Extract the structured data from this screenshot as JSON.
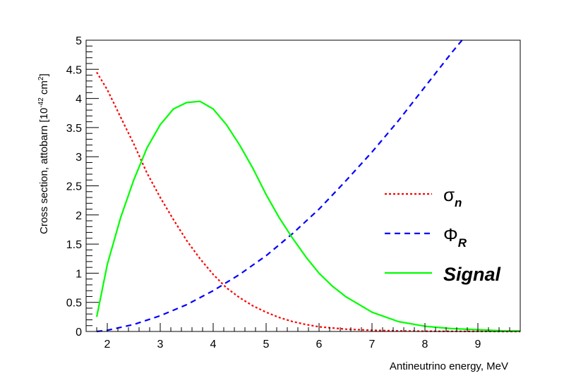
{
  "chart_data": {
    "type": "line",
    "xlabel": "Antineutrino energy, MeV",
    "ylabel": "Cross section, attobarn [10",
    "ylabel_exp": "-42",
    "ylabel_unit": " cm",
    "ylabel_unit_exp": "2",
    "ylabel_close": "]",
    "xlim": [
      1.6,
      9.8
    ],
    "ylim": [
      0,
      5
    ],
    "x_ticks": [
      "2",
      "3",
      "4",
      "5",
      "6",
      "7",
      "8",
      "9"
    ],
    "y_ticks": [
      "0",
      "0.5",
      "1",
      "1.5",
      "2",
      "2.5",
      "3",
      "3.5",
      "4",
      "4.5",
      "5"
    ],
    "grid": false,
    "legend_position": "right",
    "series": [
      {
        "name": "σ",
        "subscript": "n",
        "color": "#ff0000",
        "style": "dotted",
        "x": [
          1.8,
          2.0,
          2.25,
          2.5,
          2.75,
          3.0,
          3.25,
          3.5,
          3.75,
          4.0,
          4.25,
          4.5,
          4.75,
          5.0,
          5.25,
          5.5,
          5.75,
          6.0,
          6.5,
          7.0,
          7.5,
          8.0,
          8.5,
          9.0,
          9.5,
          9.8
        ],
        "y": [
          4.45,
          4.15,
          3.68,
          3.22,
          2.72,
          2.3,
          1.92,
          1.56,
          1.25,
          0.98,
          0.75,
          0.58,
          0.44,
          0.33,
          0.24,
          0.17,
          0.12,
          0.08,
          0.04,
          0.02,
          0.01,
          0.005,
          0.002,
          0.001,
          0.0,
          0.0
        ]
      },
      {
        "name": "Φ",
        "subscript": "R",
        "color": "#0000ff",
        "style": "dashed",
        "x": [
          1.8,
          2.0,
          2.5,
          3.0,
          3.5,
          4.0,
          4.5,
          5.0,
          5.5,
          6.0,
          6.5,
          7.0,
          7.5,
          8.0,
          8.5,
          8.7
        ],
        "y": [
          0.0,
          0.02,
          0.12,
          0.27,
          0.46,
          0.7,
          0.98,
          1.3,
          1.68,
          2.1,
          2.58,
          3.08,
          3.62,
          4.2,
          4.78,
          5.0
        ]
      },
      {
        "name": "Signal",
        "color": "#00ff00",
        "style": "solid",
        "x": [
          1.8,
          2.0,
          2.25,
          2.5,
          2.75,
          3.0,
          3.25,
          3.5,
          3.75,
          4.0,
          4.25,
          4.5,
          4.75,
          5.0,
          5.25,
          5.5,
          5.75,
          6.0,
          6.25,
          6.5,
          7.0,
          7.5,
          8.0,
          8.5,
          9.0,
          9.5,
          9.8
        ],
        "y": [
          0.25,
          1.15,
          1.95,
          2.6,
          3.15,
          3.55,
          3.82,
          3.93,
          3.95,
          3.82,
          3.55,
          3.2,
          2.8,
          2.35,
          1.95,
          1.6,
          1.28,
          1.0,
          0.78,
          0.6,
          0.33,
          0.17,
          0.09,
          0.05,
          0.03,
          0.01,
          0.01
        ]
      }
    ]
  }
}
